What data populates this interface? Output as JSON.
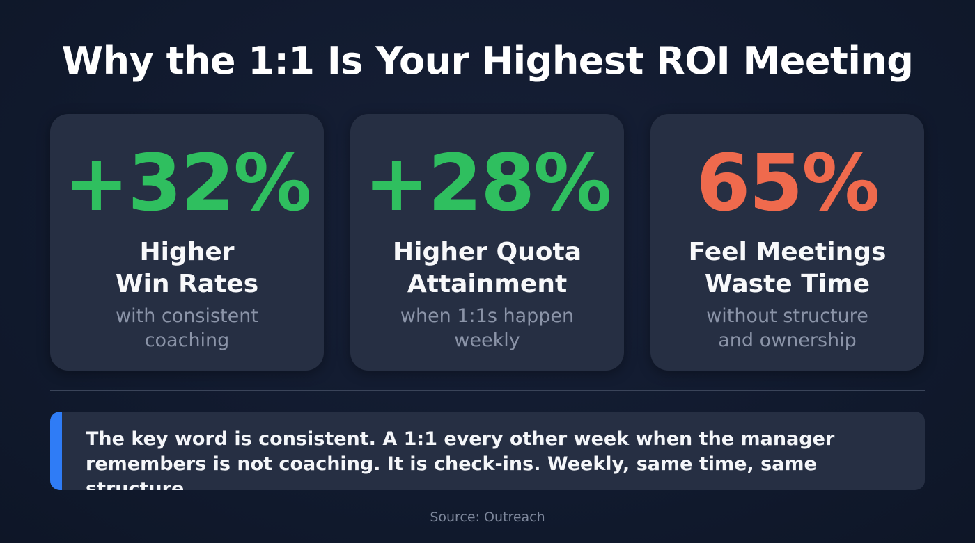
{
  "title": "Why the 1:1 Is Your Highest ROI Meeting",
  "colors": {
    "positive": "#2fbf5f",
    "negative": "#ef6a4d",
    "accent_bar": "#2f7cf6",
    "card_bg": "#262f43"
  },
  "cards": [
    {
      "stat": "+32%",
      "label_line1": "Higher",
      "label_line2": "Win Rates",
      "sub_line1": "with consistent",
      "sub_line2": "coaching",
      "tone": "positive"
    },
    {
      "stat": "+28%",
      "label_line1": "Higher Quota",
      "label_line2": "Attainment",
      "sub_line1": "when 1:1s happen",
      "sub_line2": "weekly",
      "tone": "positive"
    },
    {
      "stat": "65%",
      "label_line1": "Feel Meetings",
      "label_line2": "Waste Time",
      "sub_line1": "without structure",
      "sub_line2": "and ownership",
      "tone": "negative"
    }
  ],
  "callout": {
    "line1": "The key word is consistent. A 1:1 every other week when the manager",
    "line2": "remembers is not coaching. It is check-ins. Weekly, same time, same structure."
  },
  "source": "Source: Outreach"
}
